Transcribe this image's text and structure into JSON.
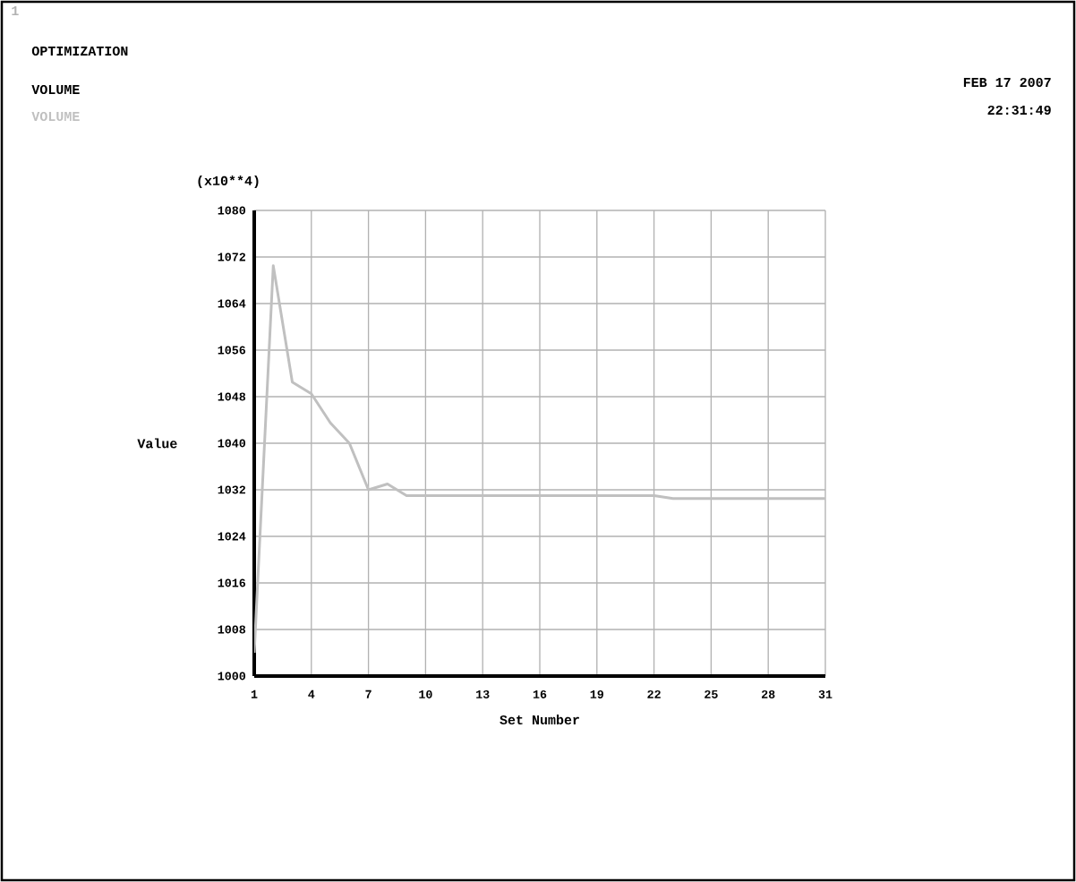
{
  "chart_data": {
    "type": "line",
    "title": "OPTIMIZATION",
    "subtitle": "VOLUME",
    "xlabel": "Set Number",
    "ylabel": "Value",
    "annotations": [
      "1",
      "FEB 17 2007",
      "22:31:49",
      "(x10**4)"
    ],
    "x": [
      1,
      2,
      3,
      4,
      5,
      6,
      7,
      8,
      9,
      10,
      11,
      12,
      13,
      14,
      15,
      16,
      17,
      18,
      19,
      20,
      21,
      22,
      23,
      24,
      25,
      26,
      27,
      28,
      29,
      30,
      31
    ],
    "series": [
      {
        "name": "VOLUME",
        "color": "#c0c0c0",
        "values": [
          1004,
          1070.5,
          1050.5,
          1048.5,
          1043.5,
          1040,
          1032,
          1033,
          1031,
          1031,
          1031,
          1031,
          1031,
          1031,
          1031,
          1031,
          1031,
          1031,
          1031,
          1031,
          1031,
          1031,
          1030.5,
          1030.5,
          1030.5,
          1030.5,
          1030.5,
          1030.5,
          1030.5,
          1030.5,
          1030.5
        ]
      }
    ],
    "xlim": [
      1,
      31
    ],
    "ylim": [
      1000,
      1080
    ],
    "xticks": [
      1,
      4,
      7,
      10,
      13,
      16,
      19,
      22,
      25,
      28,
      31
    ],
    "yticks": [
      1000,
      1008,
      1016,
      1024,
      1032,
      1040,
      1048,
      1056,
      1064,
      1072,
      1080
    ],
    "grid": true
  }
}
